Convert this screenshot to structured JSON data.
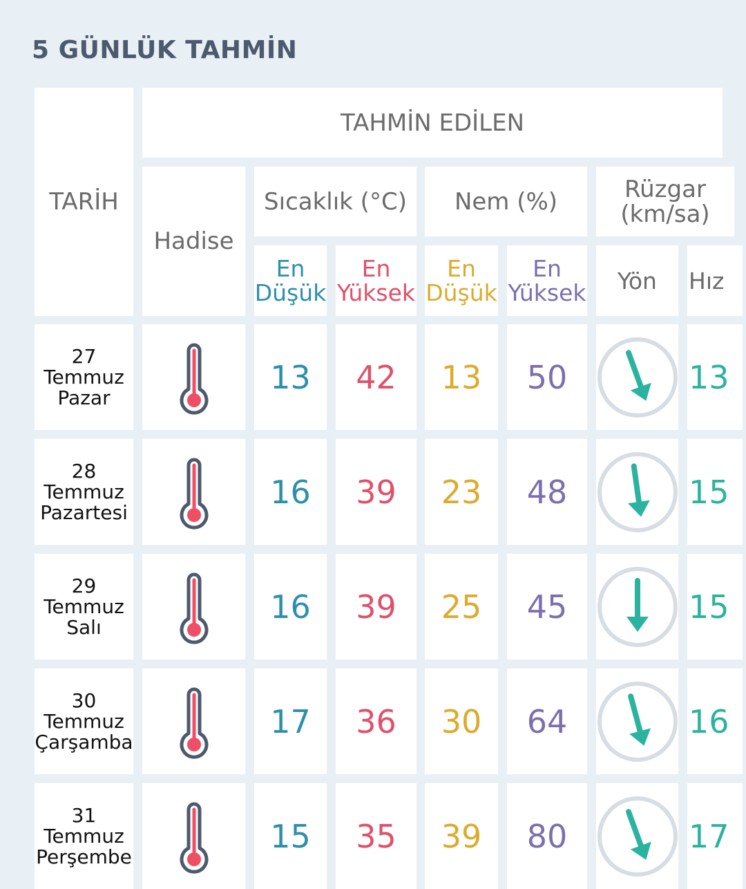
{
  "page": {
    "title": "5 GÜNLÜK TAHMİN"
  },
  "table": {
    "header": {
      "tarih": "TARİH",
      "tahmin": "TAHMİN EDİLEN",
      "hadise": "Hadise",
      "sicaklik": "Sıcaklık (°C)",
      "nem": "Nem (%)",
      "ruzgar_line1": "Rüzgar",
      "ruzgar_line2": "(km/sa)",
      "en": "En",
      "dusuk": "Düşük",
      "yuksek": "Yüksek",
      "yon": "Yön",
      "hiz": "Hız"
    },
    "rows": [
      {
        "day": "27",
        "month": "Temmuz",
        "weekday": "Pazar",
        "hadise_icon": "thermometer-icon",
        "temp_min": "13",
        "temp_max": "42",
        "hum_min": "13",
        "hum_max": "50",
        "wind_dir_deg": 160,
        "wind_speed": "13"
      },
      {
        "day": "28",
        "month": "Temmuz",
        "weekday": "Pazartesi",
        "hadise_icon": "thermometer-icon",
        "temp_min": "16",
        "temp_max": "39",
        "hum_min": "23",
        "hum_max": "48",
        "wind_dir_deg": 172,
        "wind_speed": "15"
      },
      {
        "day": "29",
        "month": "Temmuz",
        "weekday": "Salı",
        "hadise_icon": "thermometer-icon",
        "temp_min": "16",
        "temp_max": "39",
        "hum_min": "25",
        "hum_max": "45",
        "wind_dir_deg": 180,
        "wind_speed": "15"
      },
      {
        "day": "30",
        "month": "Temmuz",
        "weekday": "Çarşamba",
        "hadise_icon": "thermometer-icon",
        "temp_min": "17",
        "temp_max": "36",
        "hum_min": "30",
        "hum_max": "64",
        "wind_dir_deg": 165,
        "wind_speed": "16"
      },
      {
        "day": "31",
        "month": "Temmuz",
        "weekday": "Perşembe",
        "hadise_icon": "thermometer-icon",
        "temp_min": "15",
        "temp_max": "35",
        "hum_min": "39",
        "hum_max": "80",
        "wind_dir_deg": 160,
        "wind_speed": "17"
      }
    ]
  },
  "colors": {
    "background": "#e9f0f5",
    "title": "#4d5a6e",
    "temp_min": "#2e8fad",
    "temp_max": "#e0506a",
    "hum_min": "#dcab2e",
    "hum_max": "#7d6fae",
    "wind": "#2bb3a0",
    "thermometer_outline": "#4d5a6e",
    "thermometer_fill": "#ef4f66"
  }
}
